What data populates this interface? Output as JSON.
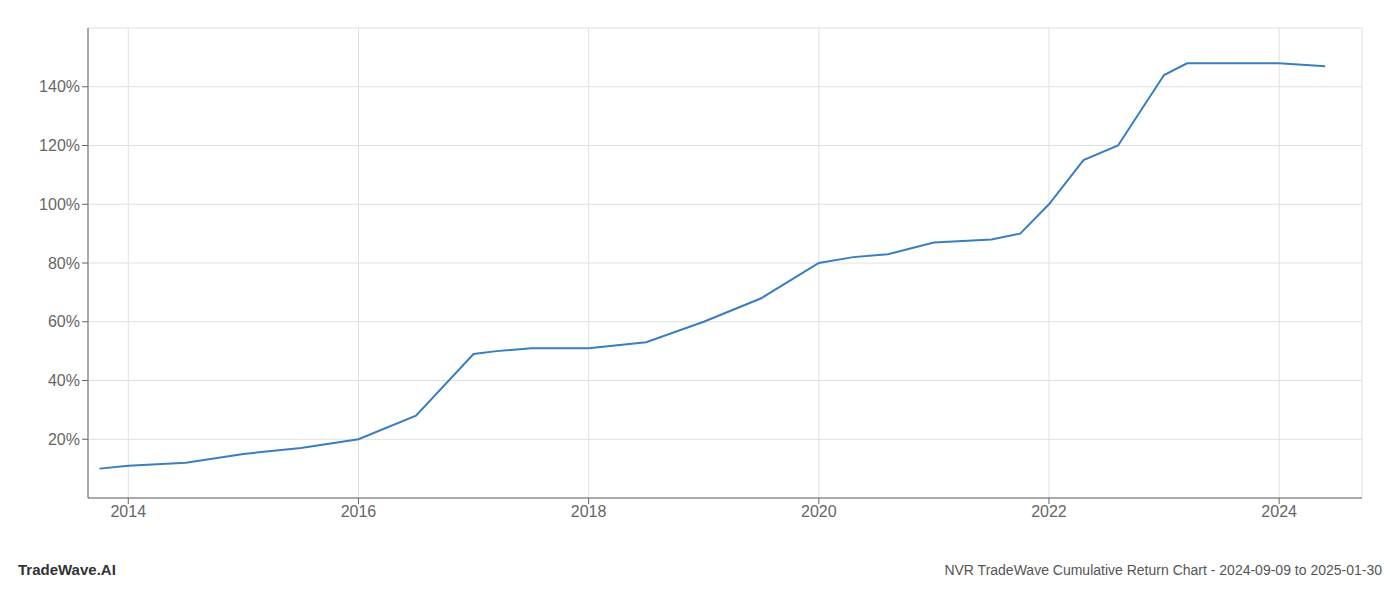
{
  "chart_data": {
    "type": "line",
    "title": "NVR TradeWave Cumulative Return Chart - 2024-09-09 to 2025-01-30",
    "annotations": [
      {
        "text": "TradeWave.AI"
      }
    ],
    "x": [
      2013.75,
      2014.0,
      2014.5,
      2015.0,
      2015.5,
      2016.0,
      2016.5,
      2017.0,
      2017.2,
      2017.5,
      2018.0,
      2018.5,
      2019.0,
      2019.5,
      2020.0,
      2020.3,
      2020.6,
      2021.0,
      2021.5,
      2021.75,
      2022.0,
      2022.3,
      2022.6,
      2023.0,
      2023.2,
      2023.5,
      2024.0,
      2024.4
    ],
    "values": [
      10,
      11,
      12,
      15,
      17,
      20,
      28,
      49,
      50,
      51,
      51,
      53,
      60,
      68,
      80,
      82,
      83,
      87,
      88,
      90,
      100,
      115,
      120,
      144,
      148,
      148,
      148,
      147
    ],
    "color": "#3a7ebf",
    "xlim": [
      2013.65,
      2024.72
    ],
    "xticks": [
      2014,
      2016,
      2018,
      2020,
      2022,
      2024
    ],
    "ylim": [
      0,
      160
    ],
    "yticks": [
      {
        "value": 20,
        "label": "20%"
      },
      {
        "value": 40,
        "label": "40%"
      },
      {
        "value": 60,
        "label": "60%"
      },
      {
        "value": 80,
        "label": "80%"
      },
      {
        "value": 100,
        "label": "100%"
      },
      {
        "value": 120,
        "label": "120%"
      },
      {
        "value": 140,
        "label": "140%"
      }
    ],
    "grid": true
  }
}
